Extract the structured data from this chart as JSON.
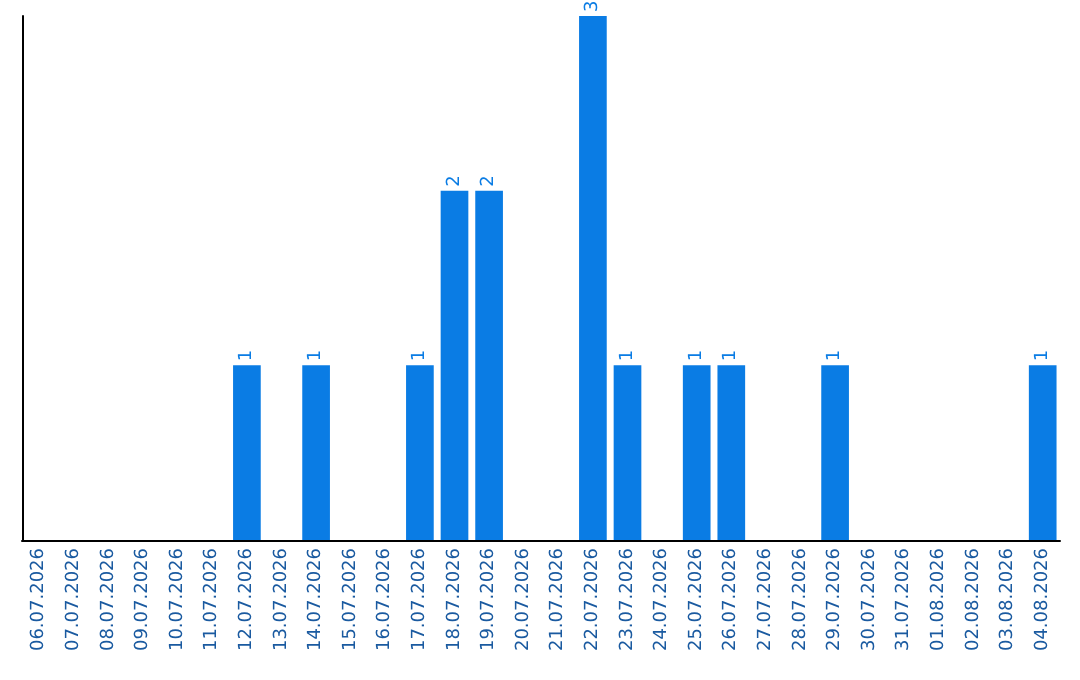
{
  "chart_data": {
    "type": "bar",
    "categories": [
      "06.07.2026",
      "07.07.2026",
      "08.07.2026",
      "09.07.2026",
      "10.07.2026",
      "11.07.2026",
      "12.07.2026",
      "13.07.2026",
      "14.07.2026",
      "15.07.2026",
      "16.07.2026",
      "17.07.2026",
      "18.07.2026",
      "19.07.2026",
      "20.07.2026",
      "21.07.2026",
      "22.07.2026",
      "23.07.2026",
      "24.07.2026",
      "25.07.2026",
      "26.07.2026",
      "27.07.2026",
      "28.07.2026",
      "29.07.2026",
      "30.07.2026",
      "31.07.2026",
      "01.08.2026",
      "02.08.2026",
      "03.08.2026",
      "04.08.2026"
    ],
    "values": [
      0,
      0,
      0,
      0,
      0,
      0,
      1,
      0,
      1,
      0,
      0,
      1,
      2,
      2,
      0,
      0,
      3,
      1,
      0,
      1,
      1,
      0,
      0,
      1,
      0,
      0,
      0,
      0,
      0,
      1
    ],
    "color": "#0a7ce4",
    "value_labels": [
      null,
      null,
      null,
      null,
      null,
      null,
      "1",
      null,
      "1",
      null,
      null,
      "1",
      "2",
      "2",
      null,
      null,
      "3",
      "1",
      null,
      "1",
      "1",
      null,
      null,
      "1",
      null,
      null,
      null,
      null,
      null,
      "1"
    ]
  }
}
